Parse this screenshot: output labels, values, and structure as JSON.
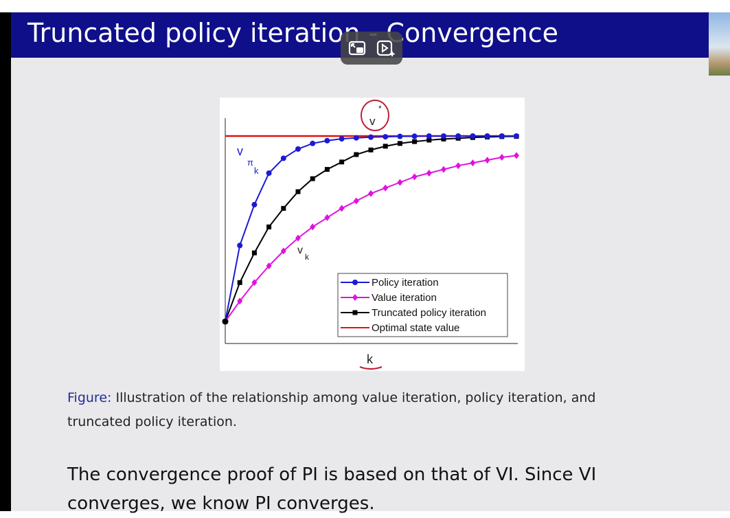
{
  "slide": {
    "title": "Truncated policy iteration - Convergence",
    "caption_label": "Figure:",
    "caption_text": "Illustration of the relationship among value iteration, policy iteration, and truncated policy iteration.",
    "body_text": "The convergence proof of PI is based on that of VI. Since VI converges, we know PI converges."
  },
  "overlay": {
    "buttons": [
      "picture-in-picture-icon",
      "video-ai-icon"
    ]
  },
  "colors": {
    "title_bar": "#0f0f8a",
    "policy": "#1a1ad6",
    "value": "#e012e0",
    "truncated": "#000000",
    "optimal": "#e01010",
    "annotation": "#c0203a"
  },
  "chart_data": {
    "type": "line",
    "xlabel": "k",
    "ylabel": "",
    "annotations": {
      "vstar_base": "v",
      "vstar_sup": "*",
      "vpik_base": "v",
      "vpik_sub1": "π",
      "vpik_sub2": "k",
      "vk_base": "v",
      "vk_sub": "k"
    },
    "legend_position": "bottom-right",
    "grid": false,
    "x": [
      0,
      1,
      2,
      3,
      4,
      5,
      6,
      7,
      8,
      9,
      10,
      11,
      12,
      13,
      14,
      15,
      16,
      17,
      18,
      19,
      20
    ],
    "series": [
      {
        "name": "Policy iteration",
        "marker": "circle",
        "color": "#1a1ad6",
        "values": [
          0,
          0.41,
          0.63,
          0.8,
          0.88,
          0.93,
          0.96,
          0.975,
          0.985,
          0.99,
          0.994,
          0.996,
          0.998,
          0.999,
          1,
          1,
          1,
          1,
          1,
          1,
          1
        ]
      },
      {
        "name": "Value iteration",
        "marker": "diamond",
        "color": "#e012e0",
        "values": [
          0,
          0.11,
          0.21,
          0.3,
          0.38,
          0.45,
          0.51,
          0.56,
          0.61,
          0.65,
          0.69,
          0.72,
          0.75,
          0.78,
          0.8,
          0.82,
          0.84,
          0.855,
          0.87,
          0.885,
          0.895
        ]
      },
      {
        "name": "Truncated policy iteration",
        "marker": "square",
        "color": "#000000",
        "values": [
          0,
          0.21,
          0.37,
          0.51,
          0.61,
          0.7,
          0.77,
          0.82,
          0.86,
          0.9,
          0.925,
          0.945,
          0.96,
          0.97,
          0.978,
          0.984,
          0.988,
          0.992,
          0.995,
          0.997,
          0.998
        ]
      },
      {
        "name": "Optimal state value",
        "marker": "none",
        "color": "#e01010",
        "values": [
          1,
          1,
          1,
          1,
          1,
          1,
          1,
          1,
          1,
          1,
          1,
          1,
          1,
          1,
          1,
          1,
          1,
          1,
          1,
          1,
          1
        ]
      }
    ]
  }
}
